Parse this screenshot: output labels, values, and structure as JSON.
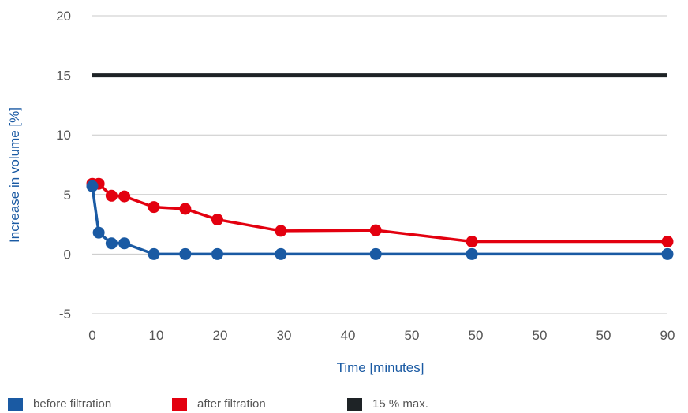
{
  "chart_data": {
    "type": "line",
    "title": "",
    "xlabel": "Time [minutes]",
    "ylabel": "Increase in volume  [%]",
    "ylim": [
      -5,
      20
    ],
    "yticks": [
      "-5",
      "0",
      "5",
      "10",
      "15",
      "20"
    ],
    "xticks": [
      "0",
      "10",
      "20",
      "30",
      "40",
      "50",
      "50",
      "50",
      "50",
      "90"
    ],
    "grid": "horizontal",
    "series": [
      {
        "name": "before filtration",
        "color": "#1a5aa3",
        "points": [
          [
            0,
            5.7
          ],
          [
            1,
            1.8
          ],
          [
            3,
            0.9
          ],
          [
            5,
            0.9
          ],
          [
            9.6,
            0
          ],
          [
            14.5,
            0
          ],
          [
            19.5,
            0
          ],
          [
            29.4,
            0
          ],
          [
            44.2,
            0
          ],
          [
            59.2,
            0
          ],
          [
            89.7,
            0
          ]
        ]
      },
      {
        "name": "after filtration",
        "color": "#e3000f",
        "points": [
          [
            0,
            5.9
          ],
          [
            1,
            5.9
          ],
          [
            3,
            4.9
          ],
          [
            5,
            4.85
          ],
          [
            9.6,
            3.95
          ],
          [
            14.5,
            3.8
          ],
          [
            19.5,
            2.9
          ],
          [
            29.4,
            1.95
          ],
          [
            44.2,
            2.0
          ],
          [
            59.2,
            1.05
          ],
          [
            89.7,
            1.05
          ]
        ]
      },
      {
        "name": "15 % max.",
        "color": "#1e2326",
        "points": [
          [
            0,
            15
          ],
          [
            89.7,
            15
          ]
        ]
      }
    ]
  },
  "legend": [
    {
      "label": "before filtration",
      "color": "#1a5aa3"
    },
    {
      "label": "after filtration",
      "color": "#e3000f"
    },
    {
      "label": "15 % max.",
      "color": "#1e2326"
    }
  ]
}
